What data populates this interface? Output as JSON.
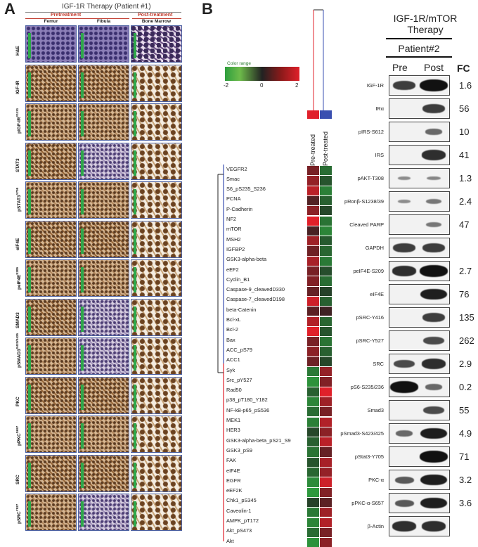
{
  "panelA": {
    "letter": "A",
    "title": "IGF-1R Therapy (Patient #1)",
    "pre_label": "Pretreatment",
    "post_label": "Post-treatment",
    "columns": [
      "Femur",
      "Fibula",
      "Bone Marrow"
    ],
    "rows": [
      "H&E",
      "IGF-IR",
      "pIGF-IR",
      "STAT3",
      "pSTAT3",
      "eIF4E",
      "peIF4E",
      "SMAD3",
      "pSMAD3",
      "PKC",
      "pPKC",
      "SRC",
      "pSRC"
    ],
    "row_superscripts": [
      "",
      "",
      "Y1131",
      "",
      "Y705",
      "",
      "S209",
      "",
      "S423/S425",
      "",
      "S657",
      "",
      "Y527"
    ]
  },
  "panelB": {
    "letter": "B",
    "legend_title": "Color range",
    "legend_ticks": [
      "-2",
      "0",
      "2"
    ],
    "colors": {
      "low": "#2e9e3e",
      "mid": "#222222",
      "high": "#e0202a",
      "pre": "#e0202a",
      "post": "#3a4fb0"
    },
    "heatmap_columns": [
      "Pre-treated",
      "Post-treated"
    ],
    "genes": [
      "VEGFR2",
      "Smac",
      "S6_pS235_S236",
      "PCNA",
      "P-Cadherin",
      "NF2",
      "mTOR",
      "MSH2",
      "IGFBP2",
      "GSK3-alpha-beta",
      "eEF2",
      "Cyclin_B1",
      "Caspase-9_cleavedD330",
      "Caspase-7_cleavedD198",
      "beta-Catenin",
      "Bcl-xL",
      "Bcl-2",
      "Bax",
      "ACC_pS79",
      "ACC1",
      "Syk",
      "Src_pY527",
      "Rad50",
      "p38_pT180_Y182",
      "NF-kB-p65_pS536",
      "MEK1",
      "HER3",
      "GSK3-alpha-beta_pS21_S9",
      "GSK3_pS9",
      "FAK",
      "eIF4E",
      "EGFR",
      "eEF2K",
      "Chk1_pS345",
      "Caveolin-1",
      "AMPK_pT172",
      "Akt_pS473",
      "Akt"
    ],
    "heat_pre": [
      0.9,
      1.2,
      1.6,
      0.5,
      1.1,
      2.0,
      0.4,
      1.3,
      0.8,
      1.4,
      0.9,
      1.0,
      0.7,
      1.8,
      0.6,
      1.5,
      2.0,
      0.9,
      1.1,
      0.8,
      -1.4,
      -1.8,
      -1.0,
      -1.6,
      -1.2,
      -1.5,
      -0.6,
      -1.0,
      -1.3,
      -0.8,
      -1.1,
      -1.7,
      -1.9,
      -0.5,
      -1.4,
      -1.6,
      -1.2,
      -1.8
    ],
    "heat_post": [
      -1.2,
      -0.8,
      -1.5,
      -1.0,
      -0.6,
      -1.3,
      -1.6,
      -0.9,
      -1.1,
      -1.4,
      -0.7,
      -1.2,
      -0.5,
      -1.0,
      0.3,
      -1.1,
      -0.8,
      -1.3,
      -1.0,
      -0.6,
      1.2,
      1.0,
      2.0,
      1.3,
      0.9,
      1.5,
      1.1,
      1.6,
      0.7,
      1.4,
      1.2,
      1.8,
      1.0,
      0.6,
      1.3,
      1.5,
      0.9,
      1.1
    ],
    "wb_title": [
      "IGF-1R/mTOR",
      "Therapy"
    ],
    "patient": "Patient#2",
    "lanes": [
      "Pre",
      "Post"
    ],
    "fc_header": "FC",
    "proteins": [
      {
        "name": "IGF-1R",
        "fc": "1.6",
        "pre": 0.7,
        "post": 1.0
      },
      {
        "name": "IRα",
        "fc": "56",
        "pre": 0.0,
        "post": 0.7
      },
      {
        "name": "pIRS-S612",
        "fc": "10",
        "pre": 0.0,
        "post": 0.4
      },
      {
        "name": "IRS",
        "fc": "41",
        "pre": 0.0,
        "post": 0.8
      },
      {
        "name": "pAKT-T308",
        "fc": "1.3",
        "pre": 0.15,
        "post": 0.2
      },
      {
        "name": "pRonβ-S1238/39",
        "fc": "2.4",
        "pre": 0.15,
        "post": 0.3
      },
      {
        "name": "Cleaved PARP",
        "fc": "47",
        "pre": 0.0,
        "post": 0.3
      },
      {
        "name": "GAPDH",
        "fc": "",
        "pre": 0.7,
        "post": 0.7
      },
      {
        "name": "peIF4E-S209",
        "fc": "2.7",
        "pre": 0.8,
        "post": 1.0
      },
      {
        "name": "eIF4E",
        "fc": "76",
        "pre": 0.0,
        "post": 0.9
      },
      {
        "name": "pSRC-Y416",
        "fc": "135",
        "pre": 0.0,
        "post": 0.7
      },
      {
        "name": "pSRC-Y527",
        "fc": "262",
        "pre": 0.0,
        "post": 0.6
      },
      {
        "name": "SRC",
        "fc": "2.9",
        "pre": 0.6,
        "post": 0.8
      },
      {
        "name": "pS6-S235/236",
        "fc": "0.2",
        "pre": 1.0,
        "post": 0.4
      },
      {
        "name": "Smad3",
        "fc": "55",
        "pre": 0.0,
        "post": 0.6
      },
      {
        "name": "pSmad3-S423/425",
        "fc": "4.9",
        "pre": 0.4,
        "post": 0.9
      },
      {
        "name": "pStat3-Y705",
        "fc": "71",
        "pre": 0.0,
        "post": 1.0
      },
      {
        "name": "PKC-α",
        "fc": "3.2",
        "pre": 0.5,
        "post": 0.9
      },
      {
        "name": "pPKC-α-S657",
        "fc": "3.6",
        "pre": 0.5,
        "post": 0.9
      },
      {
        "name": "β-Actin",
        "fc": "",
        "pre": 0.8,
        "post": 0.8
      }
    ]
  }
}
